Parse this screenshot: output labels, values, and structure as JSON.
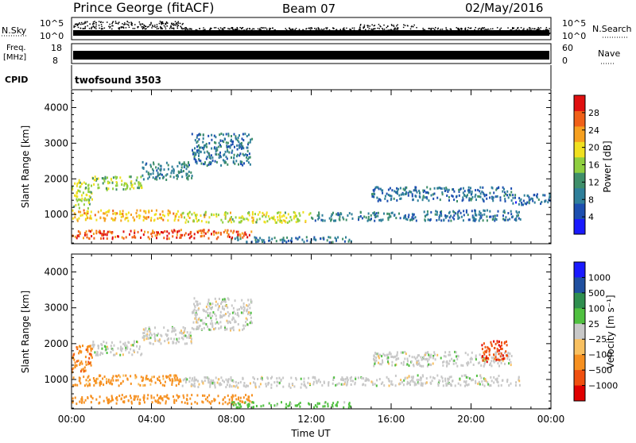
{
  "header": {
    "title": "Prince George (fitACF)",
    "beam": "Beam 07",
    "date": "02/May/2016"
  },
  "top_panels": {
    "nsky_label": "N.Sky",
    "nsky_ticks": [
      "10^5",
      "10^0"
    ],
    "nsearch_label": "N.Search",
    "nsearch_ticks": [
      "10^5",
      "10^0"
    ],
    "freq_label": "Freq.",
    "freq_unit": "[MHz]",
    "freq_ticks": [
      "18",
      "8"
    ],
    "nave_label": "Nave",
    "nave_ticks": [
      "60",
      "0"
    ],
    "cpid_label": "CPID",
    "cpid_value": "twofsound 3503"
  },
  "colors": {
    "power": [
      "#1a1aff",
      "#1d4fb0",
      "#2f7f9a",
      "#3f8f6a",
      "#8fcf40",
      "#f0e020",
      "#f6a020",
      "#f06018",
      "#e01010"
    ],
    "velocity": [
      "#e00000",
      "#f05010",
      "#f69020",
      "#f8c060",
      "#c8c8c8",
      "#50c040",
      "#2f8f4f",
      "#2050a0",
      "#1a1aff"
    ]
  },
  "chart_data": [
    {
      "type": "heatmap",
      "name": "power",
      "xlabel": "",
      "ylabel": "Slant Range [km]",
      "x_ticks": [
        "00:00",
        "04:00",
        "08:00",
        "12:00",
        "16:00",
        "20:00",
        "00:00"
      ],
      "x_range_hours": [
        0,
        24
      ],
      "ylim": [
        180,
        4500
      ],
      "y_ticks": [
        1000,
        2000,
        3000,
        4000
      ],
      "colorbar": {
        "label": "Power [dB]",
        "range": [
          0,
          32
        ],
        "ticks": [
          "4",
          "8",
          "12",
          "16",
          "20",
          "24",
          "28"
        ]
      },
      "bands": [
        {
          "t": [
            0.0,
            1.0
          ],
          "r": [
            1200,
            2000
          ],
          "v": 17
        },
        {
          "t": [
            1.0,
            3.5
          ],
          "r": [
            1700,
            2100
          ],
          "v": 16
        },
        {
          "t": [
            3.5,
            6.0
          ],
          "r": [
            2000,
            2500
          ],
          "v": 10
        },
        {
          "t": [
            6.0,
            9.0
          ],
          "r": [
            2400,
            3300
          ],
          "v": 9
        },
        {
          "t": [
            0.0,
            5.5
          ],
          "r": [
            850,
            1150
          ],
          "v": 22
        },
        {
          "t": [
            5.5,
            12.0
          ],
          "r": [
            800,
            1100
          ],
          "v": 18
        },
        {
          "t": [
            12.0,
            16.0
          ],
          "r": [
            850,
            1100
          ],
          "v": 10
        },
        {
          "t": [
            16.0,
            22.5
          ],
          "r": [
            850,
            1150
          ],
          "v": 8
        },
        {
          "t": [
            0.0,
            9.0
          ],
          "r": [
            350,
            600
          ],
          "v": 27
        },
        {
          "t": [
            8.0,
            14.0
          ],
          "r": [
            250,
            400
          ],
          "v": 8
        },
        {
          "t": [
            15.0,
            22.0
          ],
          "r": [
            1400,
            1800
          ],
          "v": 8
        },
        {
          "t": [
            22.0,
            24.0
          ],
          "r": [
            1300,
            1600
          ],
          "v": 7
        }
      ]
    },
    {
      "type": "heatmap",
      "name": "velocity",
      "xlabel": "Time UT",
      "ylabel": "Slant Range [km]",
      "x_ticks": [
        "00:00",
        "04:00",
        "08:00",
        "12:00",
        "16:00",
        "20:00",
        "00:00"
      ],
      "x_range_hours": [
        0,
        24
      ],
      "ylim": [
        180,
        4500
      ],
      "y_ticks": [
        1000,
        2000,
        3000,
        4000
      ],
      "colorbar": {
        "label": "Velocity [m s⁻¹]",
        "ticks": [
          "1000",
          "500",
          "100",
          "25",
          "−25",
          "−100",
          "−500",
          "−1000"
        ]
      },
      "bands": [
        {
          "t": [
            0.0,
            1.0
          ],
          "r": [
            1200,
            2000
          ],
          "v": -400
        },
        {
          "t": [
            1.0,
            3.5
          ],
          "r": [
            1700,
            2100
          ],
          "v": 0
        },
        {
          "t": [
            3.5,
            6.0
          ],
          "r": [
            2000,
            2500
          ],
          "v": 0
        },
        {
          "t": [
            6.0,
            9.0
          ],
          "r": [
            2400,
            3300
          ],
          "v": 0
        },
        {
          "t": [
            0.0,
            5.5
          ],
          "r": [
            850,
            1150
          ],
          "v": -150
        },
        {
          "t": [
            5.5,
            12.0
          ],
          "r": [
            800,
            1100
          ],
          "v": 0
        },
        {
          "t": [
            12.0,
            16.0
          ],
          "r": [
            850,
            1100
          ],
          "v": 0
        },
        {
          "t": [
            16.0,
            22.5
          ],
          "r": [
            850,
            1150
          ],
          "v": 0
        },
        {
          "t": [
            0.0,
            9.0
          ],
          "r": [
            350,
            600
          ],
          "v": -200
        },
        {
          "t": [
            8.0,
            14.0
          ],
          "r": [
            250,
            400
          ],
          "v": 50
        },
        {
          "t": [
            15.0,
            22.0
          ],
          "r": [
            1400,
            1800
          ],
          "v": 0
        },
        {
          "t": [
            20.5,
            21.8
          ],
          "r": [
            1500,
            2100
          ],
          "v": -800
        }
      ]
    }
  ]
}
